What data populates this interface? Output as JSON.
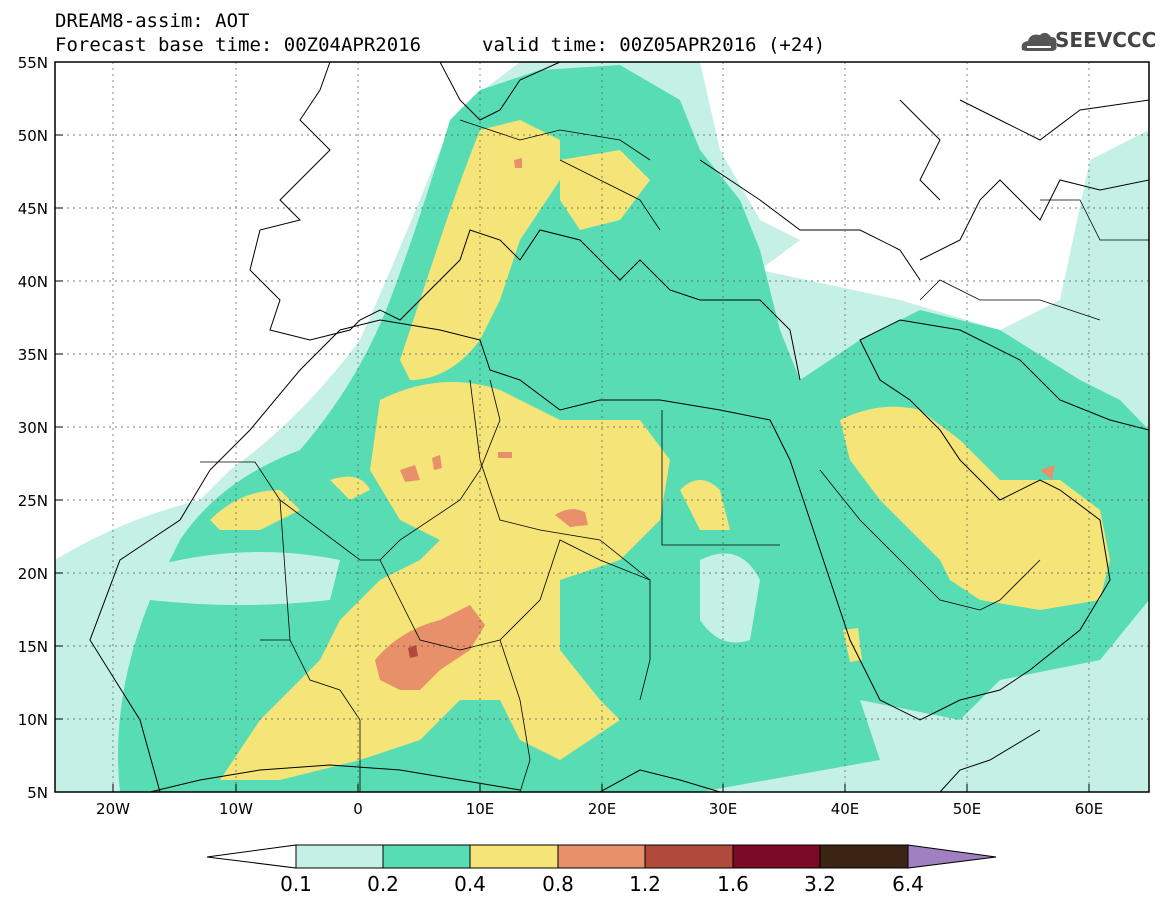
{
  "header": {
    "title": "DREAM8-assim: AOT",
    "forecast_line": "Forecast base time: 00Z04APR2016",
    "valid_line": "valid time: 00Z05APR2016 (+24)"
  },
  "logo": {
    "text": "SEEVCCC",
    "icon": "cloud-logo-icon"
  },
  "map": {
    "lat_labels": [
      "55N",
      "50N",
      "45N",
      "40N",
      "35N",
      "30N",
      "25N",
      "20N",
      "15N",
      "10N",
      "5N"
    ],
    "lon_labels": [
      "20W",
      "10W",
      "0",
      "10E",
      "20E",
      "30E",
      "40E",
      "50E",
      "60E"
    ],
    "grid": "dotted"
  },
  "colorbar": {
    "labels": [
      "0.1",
      "0.2",
      "0.4",
      "0.8",
      "1.2",
      "1.6",
      "3.2",
      "6.4"
    ],
    "colors": [
      "#ffffff",
      "#c5f0e6",
      "#58dcb4",
      "#f5e478",
      "#e8906a",
      "#b04a3c",
      "#7a0a26",
      "#3c2414",
      "#a080c0"
    ]
  }
}
